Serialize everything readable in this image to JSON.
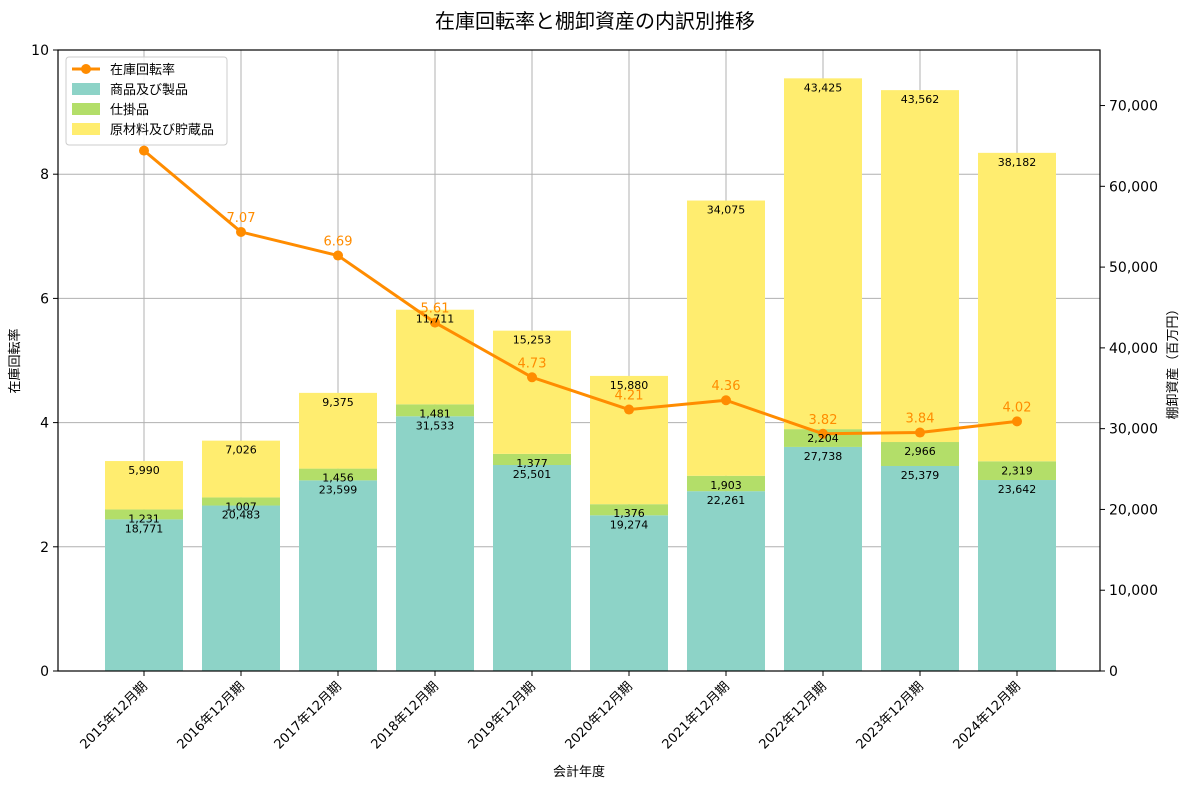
{
  "chart_data": {
    "type": "bar",
    "title": "在庫回転率と棚卸資産の内訳別推移",
    "xlabel": "会計年度",
    "ylabel_left": "在庫回転率",
    "ylabel_right": "棚卸資産（百万円）",
    "categories": [
      "2015年12月期",
      "2016年12月期",
      "2017年12月期",
      "2018年12月期",
      "2019年12月期",
      "2020年12月期",
      "2021年12月期",
      "2022年12月期",
      "2023年12月期",
      "2024年12月期"
    ],
    "ylim_left": [
      0,
      10
    ],
    "ylim_right": [
      0,
      76875
    ],
    "yticks_left": [
      "0",
      "2",
      "4",
      "6",
      "8",
      "10"
    ],
    "yticks_right": [
      "0",
      "10,000",
      "20,000",
      "30,000",
      "40,000",
      "50,000",
      "60,000",
      "70,000"
    ],
    "grid": true,
    "legend_position": "top-left",
    "series": [
      {
        "name": "商品及び製品",
        "kind": "bar",
        "color": "#8dd3c7",
        "values": [
          18771,
          20483,
          23599,
          31533,
          25501,
          19274,
          22261,
          27738,
          25379,
          23642
        ],
        "labels": [
          "18,771",
          "20,483",
          "23,599",
          "31,533",
          "25,501",
          "19,274",
          "22,261",
          "27,738",
          "25,379",
          "23,642"
        ]
      },
      {
        "name": "仕掛品",
        "kind": "bar",
        "color": "#b3de69",
        "values": [
          1231,
          1007,
          1456,
          1481,
          1377,
          1376,
          1903,
          2204,
          2966,
          2319
        ],
        "labels": [
          "1,231",
          "1,007",
          "1,456",
          "1,481",
          "1,377",
          "1,376",
          "1,903",
          "2,204",
          "2,966",
          "2,319"
        ]
      },
      {
        "name": "原材料及び貯蔵品",
        "kind": "bar",
        "color": "#ffed6f",
        "values": [
          5990,
          7026,
          9375,
          11711,
          15253,
          15880,
          34075,
          43425,
          43562,
          38182
        ],
        "labels": [
          "5,990",
          "7,026",
          "9,375",
          "11,711",
          "15,253",
          "15,880",
          "34,075",
          "43,425",
          "43,562",
          "38,182"
        ]
      },
      {
        "name": "在庫回転率",
        "kind": "line",
        "color": "#ff8c00",
        "values": [
          8.38,
          7.07,
          6.69,
          5.61,
          4.73,
          4.21,
          4.36,
          3.82,
          3.84,
          4.02
        ],
        "labels": [
          "",
          "7.07",
          "6.69",
          "5.61",
          "4.73",
          "4.21",
          "4.36",
          "3.82",
          "3.84",
          "4.02"
        ]
      }
    ]
  }
}
